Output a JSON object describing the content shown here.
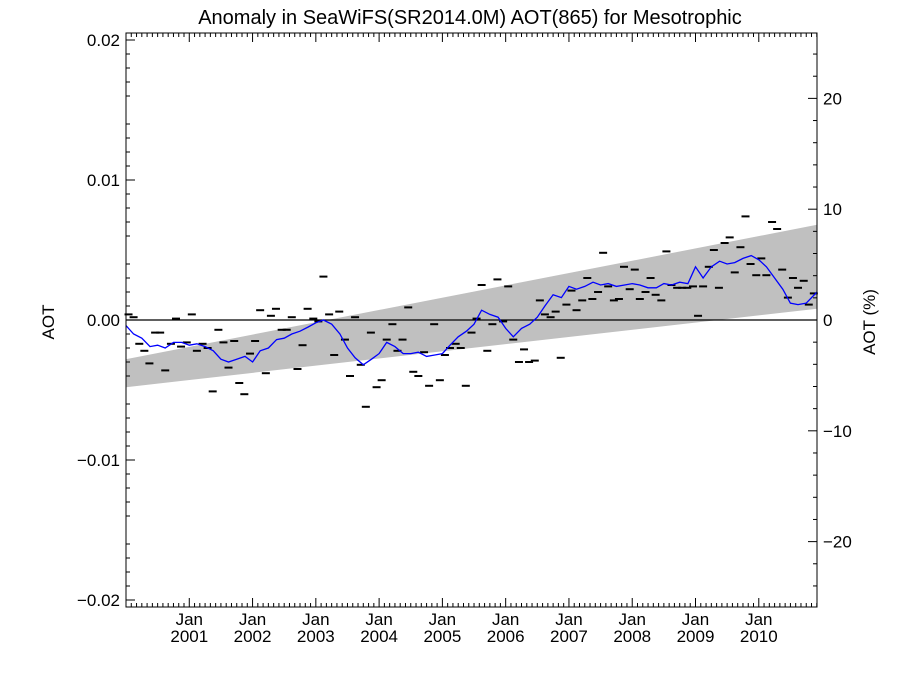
{
  "chart_data": {
    "type": "line",
    "title": "Anomaly in SeaWiFS(SR2014.0M) AOT(865) for Mesotrophic",
    "ylabel": "AOT",
    "y2label": "AOT (%)",
    "xlabel": "",
    "ylim": [
      -0.0205,
      0.0205
    ],
    "y_ticks": [
      -0.02,
      -0.01,
      0.0,
      0.01,
      0.02
    ],
    "y_tick_labels": [
      "−0.02",
      "−0.01",
      "0.00",
      "0.01",
      "0.02"
    ],
    "y2lim": [
      -25.9,
      25.9
    ],
    "y2_ticks": [
      -20,
      -10,
      0,
      10,
      20
    ],
    "y2_tick_labels": [
      "−20",
      "−10",
      "0",
      "10",
      "20"
    ],
    "xlim": [
      2000.0,
      2010.92
    ],
    "x_ticks": [
      2001,
      2002,
      2003,
      2004,
      2005,
      2006,
      2007,
      2008,
      2009,
      2010
    ],
    "x_tick_labels": [
      {
        "month": "Jan",
        "year": "2001"
      },
      {
        "month": "Jan",
        "year": "2002"
      },
      {
        "month": "Jan",
        "year": "2003"
      },
      {
        "month": "Jan",
        "year": "2004"
      },
      {
        "month": "Jan",
        "year": "2005"
      },
      {
        "month": "Jan",
        "year": "2006"
      },
      {
        "month": "Jan",
        "year": "2007"
      },
      {
        "month": "Jan",
        "year": "2008"
      },
      {
        "month": "Jan",
        "year": "2009"
      },
      {
        "month": "Jan",
        "year": "2010"
      }
    ],
    "grid": false,
    "zero_line": 0,
    "band": {
      "color": "#c0c0c0",
      "x": [
        2000.0,
        2010.92
      ],
      "lower": [
        -0.0048,
        0.0008
      ],
      "upper": [
        -0.0028,
        0.0068
      ]
    },
    "series": [
      {
        "style": "dash",
        "color": "#000000",
        "x": [
          2000.04,
          2000.12,
          2000.21,
          2000.29,
          2000.37,
          2000.46,
          2000.54,
          2000.62,
          2000.71,
          2000.79,
          2000.87,
          2000.96,
          2001.04,
          2001.12,
          2001.21,
          2001.29,
          2001.37,
          2001.46,
          2001.54,
          2001.62,
          2001.71,
          2001.79,
          2001.87,
          2001.96,
          2002.04,
          2002.12,
          2002.21,
          2002.29,
          2002.37,
          2002.46,
          2002.54,
          2002.62,
          2002.71,
          2002.79,
          2002.87,
          2002.96,
          2003.04,
          2003.12,
          2003.21,
          2003.29,
          2003.37,
          2003.46,
          2003.54,
          2003.62,
          2003.71,
          2003.79,
          2003.87,
          2003.96,
          2004.04,
          2004.12,
          2004.21,
          2004.29,
          2004.37,
          2004.46,
          2004.54,
          2004.62,
          2004.71,
          2004.79,
          2004.87,
          2004.96,
          2005.04,
          2005.12,
          2005.21,
          2005.29,
          2005.37,
          2005.46,
          2005.54,
          2005.62,
          2005.71,
          2005.79,
          2005.87,
          2005.96,
          2006.04,
          2006.12,
          2006.21,
          2006.29,
          2006.37,
          2006.46,
          2006.54,
          2006.62,
          2006.71,
          2006.79,
          2006.87,
          2006.96,
          2007.04,
          2007.12,
          2007.21,
          2007.29,
          2007.37,
          2007.46,
          2007.54,
          2007.62,
          2007.71,
          2007.79,
          2007.87,
          2007.96,
          2008.04,
          2008.12,
          2008.21,
          2008.29,
          2008.37,
          2008.46,
          2008.54,
          2008.62,
          2008.71,
          2008.79,
          2008.87,
          2008.96,
          2009.04,
          2009.12,
          2009.21,
          2009.29,
          2009.37,
          2009.46,
          2009.54,
          2009.62,
          2009.71,
          2009.79,
          2009.87,
          2009.96,
          2010.04,
          2010.12,
          2010.21,
          2010.29,
          2010.37,
          2010.46,
          2010.54,
          2010.62,
          2010.71,
          2010.79,
          2010.87
        ],
        "values": [
          0.0004,
          0.0002,
          -0.0017,
          -0.0022,
          -0.0031,
          -0.0009,
          -0.0009,
          -0.0036,
          -0.0017,
          0.0001,
          -0.0019,
          -0.0016,
          0.0004,
          -0.0022,
          -0.0017,
          -0.002,
          -0.0051,
          -0.0007,
          -0.0016,
          -0.0034,
          -0.0015,
          -0.0045,
          -0.0053,
          -0.0024,
          -0.0015,
          0.0007,
          -0.0038,
          0.0003,
          0.0008,
          -0.0007,
          -0.0007,
          0.0002,
          -0.0035,
          -0.0018,
          0.0008,
          0.0001,
          -0.0001,
          0.0031,
          0.0004,
          -0.0025,
          0.0006,
          -0.0014,
          -0.004,
          0.0002,
          -0.0032,
          -0.0062,
          -0.0009,
          -0.0048,
          -0.0043,
          -0.0014,
          -0.0003,
          -0.0022,
          -0.0014,
          0.0009,
          -0.0037,
          -0.004,
          -0.0023,
          -0.0047,
          -0.0003,
          -0.0043,
          -0.0025,
          -0.002,
          -0.0017,
          -0.002,
          -0.0047,
          -0.0009,
          0.0001,
          0.0025,
          -0.0022,
          -0.0003,
          0.0029,
          -0.0001,
          0.0024,
          -0.0014,
          -0.003,
          -0.0021,
          -0.003,
          -0.0029,
          0.0014,
          0.0004,
          0.0002,
          0.0006,
          -0.0027,
          0.0011,
          0.0021,
          0.0007,
          0.0014,
          0.003,
          0.0015,
          0.002,
          0.0048,
          0.0024,
          0.0014,
          0.0015,
          0.0038,
          0.0022,
          0.0036,
          0.0015,
          0.002,
          0.003,
          0.0018,
          0.0014,
          0.0049,
          0.0025,
          0.0023,
          0.0023,
          0.0023,
          0.0024,
          0.0003,
          0.0024,
          0.0038,
          0.005,
          0.0023,
          0.0055,
          0.0059,
          0.0034,
          0.0052,
          0.0074,
          0.004,
          0.0032,
          0.0044,
          0.0032,
          0.007,
          0.0065,
          0.0036,
          0.0016,
          0.003,
          0.0023,
          0.0028,
          0.0011,
          0.0019
        ]
      },
      {
        "style": "line",
        "color": "#0000ff",
        "x": [
          2000.0,
          2000.12,
          2000.25,
          2000.38,
          2000.5,
          2000.62,
          2000.75,
          2000.88,
          2001.0,
          2001.12,
          2001.25,
          2001.38,
          2001.5,
          2001.62,
          2001.75,
          2001.88,
          2002.0,
          2002.12,
          2002.25,
          2002.38,
          2002.5,
          2002.62,
          2002.75,
          2002.88,
          2003.0,
          2003.12,
          2003.25,
          2003.38,
          2003.5,
          2003.62,
          2003.75,
          2003.88,
          2004.0,
          2004.12,
          2004.25,
          2004.38,
          2004.5,
          2004.62,
          2004.75,
          2004.88,
          2005.0,
          2005.12,
          2005.25,
          2005.38,
          2005.5,
          2005.62,
          2005.75,
          2005.88,
          2006.0,
          2006.12,
          2006.25,
          2006.38,
          2006.5,
          2006.62,
          2006.75,
          2006.88,
          2007.0,
          2007.12,
          2007.25,
          2007.38,
          2007.5,
          2007.62,
          2007.75,
          2007.88,
          2008.0,
          2008.12,
          2008.25,
          2008.38,
          2008.5,
          2008.62,
          2008.75,
          2008.88,
          2009.0,
          2009.12,
          2009.25,
          2009.38,
          2009.5,
          2009.62,
          2009.75,
          2009.88,
          2010.0,
          2010.12,
          2010.25,
          2010.38,
          2010.5,
          2010.62,
          2010.75,
          2010.92
        ],
        "values": [
          -0.0004,
          -0.001,
          -0.0013,
          -0.0019,
          -0.0018,
          -0.002,
          -0.0016,
          -0.0016,
          -0.0018,
          -0.0017,
          -0.0019,
          -0.0022,
          -0.0028,
          -0.003,
          -0.0028,
          -0.0026,
          -0.003,
          -0.0022,
          -0.002,
          -0.0014,
          -0.0013,
          -0.001,
          -0.0008,
          -0.0005,
          -0.0002,
          0.0,
          -0.0003,
          -0.001,
          -0.002,
          -0.0027,
          -0.0032,
          -0.0028,
          -0.0024,
          -0.0016,
          -0.0019,
          -0.0024,
          -0.0024,
          -0.0023,
          -0.0026,
          -0.0025,
          -0.0024,
          -0.0018,
          -0.0012,
          -0.0008,
          -0.0003,
          0.0007,
          0.0004,
          0.0002,
          -0.0006,
          -0.0012,
          -0.0006,
          -0.0003,
          0.0002,
          0.001,
          0.0018,
          0.0016,
          0.0024,
          0.0022,
          0.0024,
          0.0027,
          0.0025,
          0.0026,
          0.0024,
          0.0025,
          0.0026,
          0.0025,
          0.0023,
          0.0023,
          0.0026,
          0.0025,
          0.0027,
          0.0026,
          0.0038,
          0.003,
          0.0038,
          0.0042,
          0.004,
          0.0041,
          0.0044,
          0.0046,
          0.0043,
          0.0038,
          0.003,
          0.0022,
          0.0012,
          0.0011,
          0.0012,
          0.002
        ]
      }
    ]
  }
}
